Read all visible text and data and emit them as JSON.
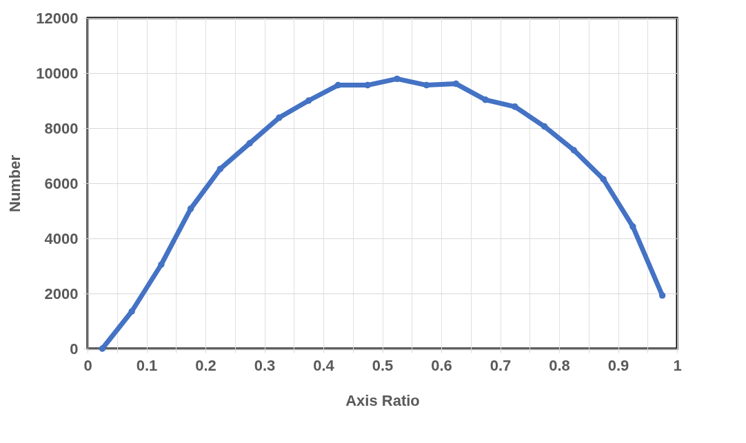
{
  "chart_data": {
    "type": "line",
    "xlabel": "Axis Ratio",
    "ylabel": "Number",
    "x": [
      0.025,
      0.075,
      0.125,
      0.175,
      0.225,
      0.275,
      0.325,
      0.375,
      0.425,
      0.475,
      0.525,
      0.575,
      0.625,
      0.675,
      0.725,
      0.775,
      0.825,
      0.875,
      0.925,
      0.975
    ],
    "series": [
      {
        "color": "#4472c4",
        "values": [
          0,
          1350,
          3050,
          5080,
          6520,
          7450,
          8380,
          9000,
          9560,
          9560,
          9790,
          9560,
          9610,
          9030,
          8780,
          8060,
          7200,
          6150,
          4430,
          1930
        ]
      }
    ],
    "xlim": [
      0,
      1
    ],
    "xticks": [
      0,
      {
        "value": 0.05,
        "label": null
      },
      0.1,
      {
        "value": 0.15,
        "label": null
      },
      0.2,
      {
        "value": 0.25,
        "label": null
      },
      0.3,
      {
        "value": 0.35,
        "label": null
      },
      0.4,
      {
        "value": 0.45,
        "label": null
      },
      0.5,
      {
        "value": 0.55,
        "label": null
      },
      0.6,
      {
        "value": 0.65,
        "label": null
      },
      0.7,
      {
        "value": 0.75,
        "label": null
      },
      0.8,
      {
        "value": 0.85,
        "label": null
      },
      0.9,
      {
        "value": 0.95,
        "label": null
      },
      1
    ],
    "ylim": [
      0,
      12000
    ],
    "yticks": [
      0,
      2000,
      4000,
      6000,
      8000,
      10000,
      12000
    ],
    "grid": true,
    "marker": "circle",
    "line_style": "solid"
  }
}
